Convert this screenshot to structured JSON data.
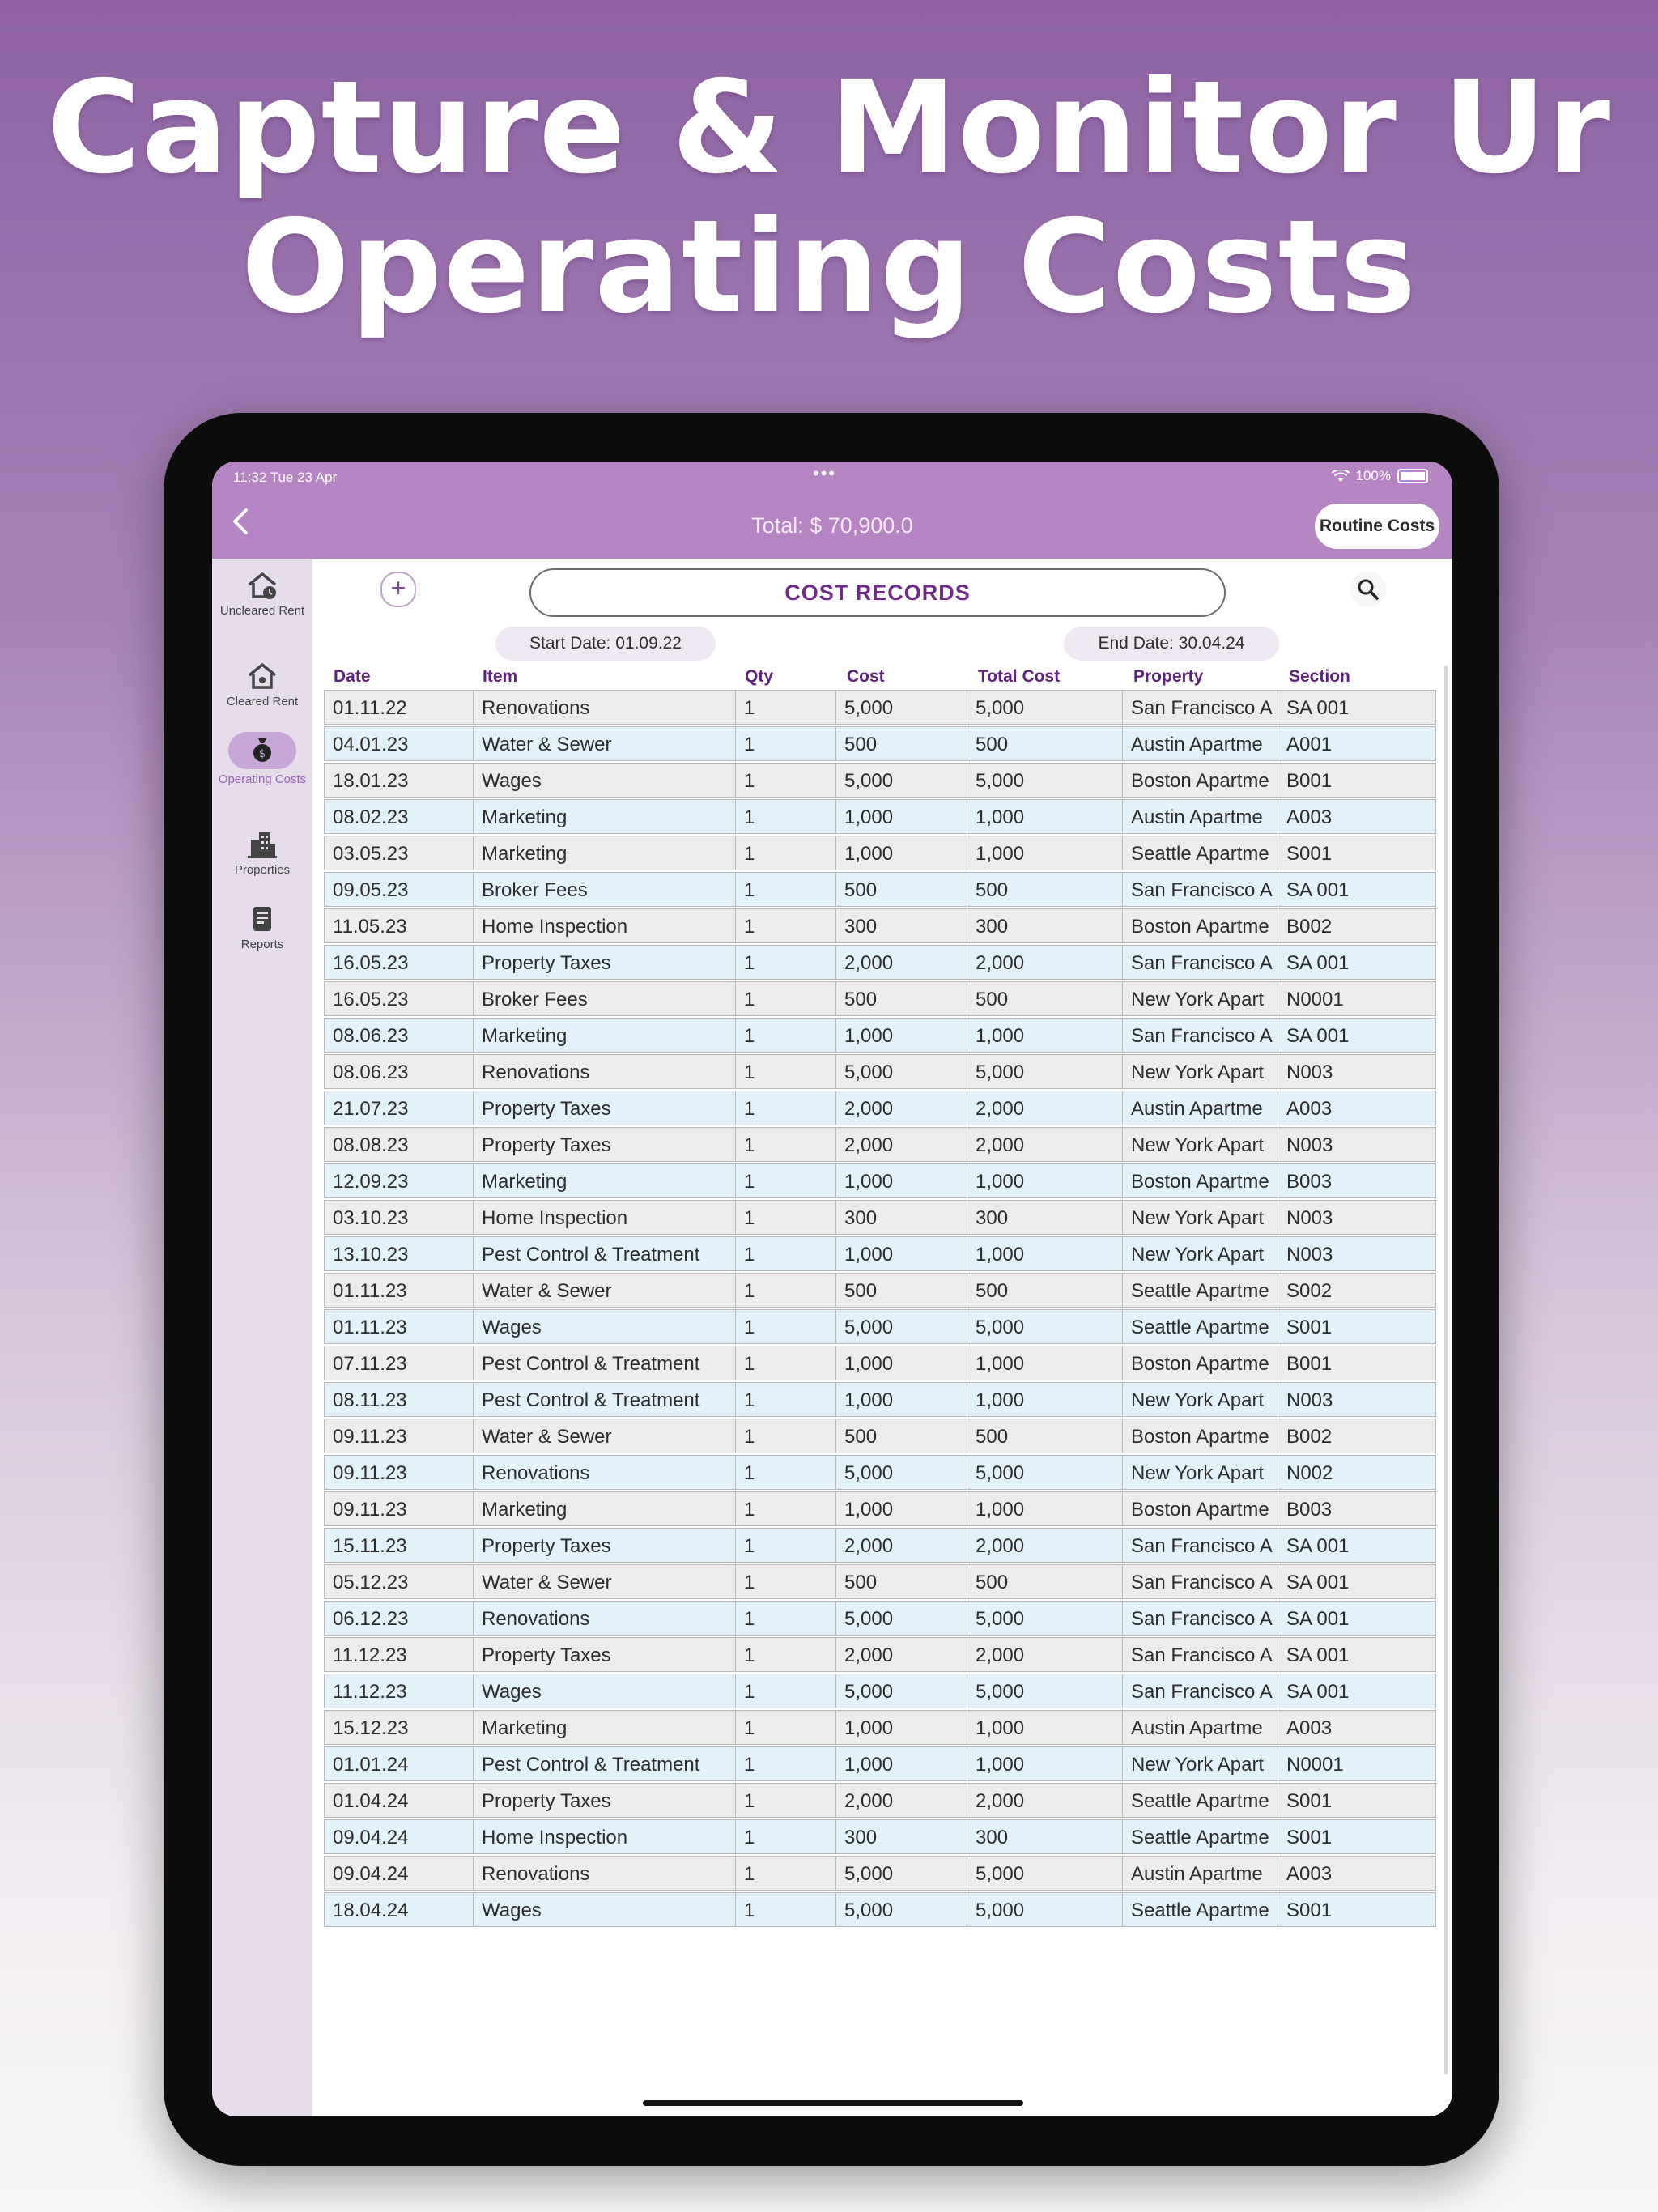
{
  "headline": {
    "line1": "Capture & Monitor Ur",
    "line2": "Operating Costs"
  },
  "status_bar": {
    "time": "11:32  Tue 23 Apr",
    "dots": "•••",
    "battery": "100%"
  },
  "nav": {
    "title": "Total: $ 70,900.0",
    "back_icon": "chevron-left-icon",
    "routine_label": "Routine Costs"
  },
  "sidebar": {
    "items": [
      {
        "label": "Uncleared Rent",
        "icon": "house-clock-icon"
      },
      {
        "label": "Cleared Rent",
        "icon": "house-icon"
      },
      {
        "label": "Operating Costs",
        "icon": "money-bag-icon",
        "active": true
      },
      {
        "label": "Properties",
        "icon": "buildings-icon"
      },
      {
        "label": "Reports",
        "icon": "report-icon"
      }
    ]
  },
  "records": {
    "title": "COST RECORDS",
    "add_icon": "plus-icon",
    "search_icon": "search-icon",
    "start_date": "Start Date: 01.09.22",
    "end_date": "End Date: 30.04.24",
    "columns": [
      "Date",
      "Item",
      "Qty",
      "Cost",
      "Total Cost",
      "Property",
      "Section"
    ],
    "rows": [
      [
        "01.11.22",
        "Renovations",
        "1",
        "5,000",
        "5,000",
        "San Francisco A",
        "SA 001"
      ],
      [
        "04.01.23",
        "Water & Sewer",
        "1",
        "500",
        "500",
        "Austin Apartme",
        "A001"
      ],
      [
        "18.01.23",
        "Wages",
        "1",
        "5,000",
        "5,000",
        "Boston Apartme",
        "B001"
      ],
      [
        "08.02.23",
        "Marketing",
        "1",
        "1,000",
        "1,000",
        "Austin Apartme",
        "A003"
      ],
      [
        "03.05.23",
        "Marketing",
        "1",
        "1,000",
        "1,000",
        "Seattle Apartme",
        "S001"
      ],
      [
        "09.05.23",
        "Broker Fees",
        "1",
        "500",
        "500",
        "San Francisco A",
        "SA 001"
      ],
      [
        "11.05.23",
        "Home Inspection",
        "1",
        "300",
        "300",
        "Boston Apartme",
        "B002"
      ],
      [
        "16.05.23",
        "Property Taxes",
        "1",
        "2,000",
        "2,000",
        "San Francisco A",
        "SA 001"
      ],
      [
        "16.05.23",
        "Broker Fees",
        "1",
        "500",
        "500",
        "New York Apart",
        "N0001"
      ],
      [
        "08.06.23",
        "Marketing",
        "1",
        "1,000",
        "1,000",
        "San Francisco A",
        "SA 001"
      ],
      [
        "08.06.23",
        "Renovations",
        "1",
        "5,000",
        "5,000",
        "New York Apart",
        "N003"
      ],
      [
        "21.07.23",
        "Property Taxes",
        "1",
        "2,000",
        "2,000",
        "Austin Apartme",
        "A003"
      ],
      [
        "08.08.23",
        "Property Taxes",
        "1",
        "2,000",
        "2,000",
        "New York Apart",
        "N003"
      ],
      [
        "12.09.23",
        "Marketing",
        "1",
        "1,000",
        "1,000",
        "Boston Apartme",
        "B003"
      ],
      [
        "03.10.23",
        "Home Inspection",
        "1",
        "300",
        "300",
        "New York Apart",
        "N003"
      ],
      [
        "13.10.23",
        "Pest Control & Treatment",
        "1",
        "1,000",
        "1,000",
        "New York Apart",
        "N003"
      ],
      [
        "01.11.23",
        "Water & Sewer",
        "1",
        "500",
        "500",
        "Seattle Apartme",
        "S002"
      ],
      [
        "01.11.23",
        "Wages",
        "1",
        "5,000",
        "5,000",
        "Seattle Apartme",
        "S001"
      ],
      [
        "07.11.23",
        "Pest Control & Treatment",
        "1",
        "1,000",
        "1,000",
        "Boston Apartme",
        "B001"
      ],
      [
        "08.11.23",
        "Pest Control & Treatment",
        "1",
        "1,000",
        "1,000",
        "New York Apart",
        "N003"
      ],
      [
        "09.11.23",
        "Water & Sewer",
        "1",
        "500",
        "500",
        "Boston Apartme",
        "B002"
      ],
      [
        "09.11.23",
        "Renovations",
        "1",
        "5,000",
        "5,000",
        "New York Apart",
        "N002"
      ],
      [
        "09.11.23",
        "Marketing",
        "1",
        "1,000",
        "1,000",
        "Boston Apartme",
        "B003"
      ],
      [
        "15.11.23",
        "Property Taxes",
        "1",
        "2,000",
        "2,000",
        "San Francisco A",
        "SA 001"
      ],
      [
        "05.12.23",
        "Water & Sewer",
        "1",
        "500",
        "500",
        "San Francisco A",
        "SA 001"
      ],
      [
        "06.12.23",
        "Renovations",
        "1",
        "5,000",
        "5,000",
        "San Francisco A",
        "SA 001"
      ],
      [
        "11.12.23",
        "Property Taxes",
        "1",
        "2,000",
        "2,000",
        "San Francisco A",
        "SA 001"
      ],
      [
        "11.12.23",
        "Wages",
        "1",
        "5,000",
        "5,000",
        "San Francisco A",
        "SA 001"
      ],
      [
        "15.12.23",
        "Marketing",
        "1",
        "1,000",
        "1,000",
        "Austin Apartme",
        "A003"
      ],
      [
        "01.01.24",
        "Pest Control & Treatment",
        "1",
        "1,000",
        "1,000",
        "New York Apart",
        "N0001"
      ],
      [
        "01.04.24",
        "Property Taxes",
        "1",
        "2,000",
        "2,000",
        "Seattle Apartme",
        "S001"
      ],
      [
        "09.04.24",
        "Home Inspection",
        "1",
        "300",
        "300",
        "Seattle Apartme",
        "S001"
      ],
      [
        "09.04.24",
        "Renovations",
        "1",
        "5,000",
        "5,000",
        "Austin Apartme",
        "A003"
      ],
      [
        "18.04.24",
        "Wages",
        "1",
        "5,000",
        "5,000",
        "Seattle Apartme",
        "S001"
      ]
    ]
  }
}
